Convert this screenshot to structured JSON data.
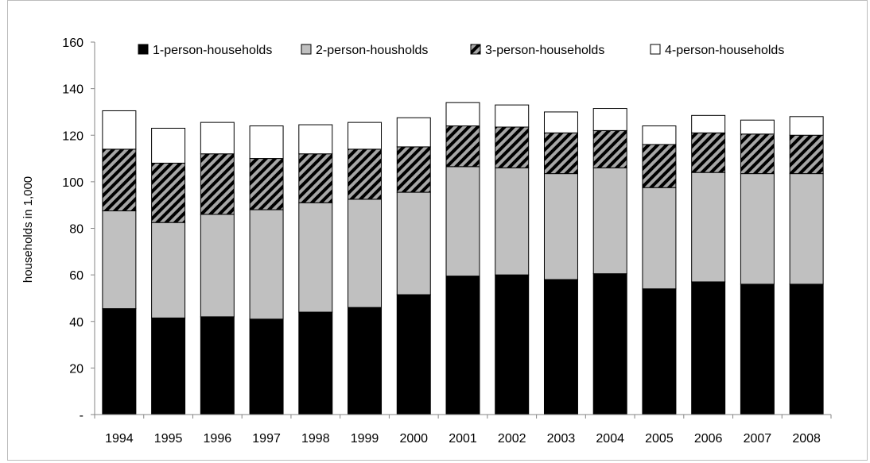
{
  "chart_data": {
    "type": "bar",
    "stacked": true,
    "ylabel": "households in 1,000",
    "xlabel": "",
    "ylim": [
      0,
      160
    ],
    "ytick_step": 20,
    "ytick_labels": [
      "-",
      "20",
      "40",
      "60",
      "80",
      "100",
      "120",
      "140",
      "160"
    ],
    "grid": false,
    "legend_placement": "top",
    "categories": [
      "1994",
      "1995",
      "1996",
      "1997",
      "1998",
      "1999",
      "2000",
      "2001",
      "2002",
      "2003",
      "2004",
      "2005",
      "2006",
      "2007",
      "2008"
    ],
    "series": [
      {
        "name": "1-person-households",
        "fill": "solid-black",
        "values": [
          45.5,
          41.5,
          42,
          41,
          44,
          46,
          51.5,
          59.5,
          60,
          58,
          60.5,
          54,
          57,
          56,
          56
        ]
      },
      {
        "name": "2-person-housholds",
        "fill": "solid-gray",
        "values": [
          42,
          41,
          44,
          47,
          47,
          46.5,
          44,
          47,
          46,
          45.5,
          45.5,
          43.5,
          47,
          47.5,
          47.5
        ]
      },
      {
        "name": "3-person-households",
        "fill": "diagonal-hatch",
        "values": [
          26.5,
          25.5,
          26,
          22,
          21,
          21.5,
          19.5,
          17.5,
          17.5,
          17.5,
          16,
          18.5,
          17,
          17,
          16.5
        ]
      },
      {
        "name": "4-person-households",
        "fill": "white",
        "values": [
          16.5,
          15,
          13.5,
          14,
          12.5,
          11.5,
          12.5,
          10,
          9.5,
          9,
          9.5,
          8,
          7.5,
          6,
          8
        ]
      }
    ],
    "colors": {
      "black": "#000000",
      "gray": "#c0c0c0",
      "white": "#ffffff",
      "hatch_bg": "#a6a6a6",
      "axis": "#868686"
    }
  }
}
